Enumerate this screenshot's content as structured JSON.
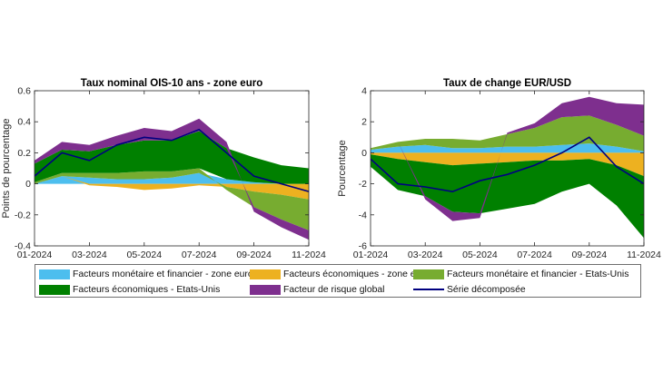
{
  "colors": {
    "monetaire_euro": "#4DBEEE",
    "economiques_euro": "#EDB120",
    "monetaire_us": "#77AC30",
    "economiques_us": "#008000",
    "risque_global": "#7E2F8E",
    "serie": "#000080"
  },
  "legend": {
    "items": [
      {
        "key": "monetaire_euro",
        "label": "Facteurs monétaire et financier - zone euro",
        "kind": "area"
      },
      {
        "key": "economiques_euro",
        "label": "Facteurs économiques - zone euro",
        "kind": "area"
      },
      {
        "key": "monetaire_us",
        "label": "Facteurs monétaire et financier - Etats-Unis",
        "kind": "area"
      },
      {
        "key": "economiques_us",
        "label": "Facteurs économiques - Etats-Unis",
        "kind": "area"
      },
      {
        "key": "risque_global",
        "label": "Facteur de risque global",
        "kind": "area"
      },
      {
        "key": "serie",
        "label": "Série décomposée",
        "kind": "line"
      }
    ]
  },
  "chart_data": [
    {
      "type": "area",
      "stacked": true,
      "title": "Taux nominal OIS-10 ans - zone euro",
      "xlabel": "",
      "ylabel": "Points de pourcentage",
      "ylim": [
        -0.4,
        0.6
      ],
      "yticks": [
        "-0.4",
        "-0.2",
        "0",
        "0.2",
        "0.4",
        "0.6"
      ],
      "xticks": [
        "01-2024",
        "03-2024",
        "05-2024",
        "07-2024",
        "09-2024",
        "11-2024"
      ],
      "x": [
        "01-2024",
        "02-2024",
        "03-2024",
        "04-2024",
        "05-2024",
        "06-2024",
        "07-2024",
        "08-2024",
        "09-2024",
        "10-2024",
        "11-2024"
      ],
      "series": [
        {
          "name": "Facteurs monétaire et financier - zone euro",
          "key": "monetaire_euro",
          "values": [
            0.0,
            0.05,
            0.04,
            0.03,
            0.03,
            0.04,
            0.07,
            0.03,
            0.01,
            0.0,
            0.0
          ]
        },
        {
          "name": "Facteurs économiques - zone euro",
          "key": "economiques_euro",
          "values": [
            0.0,
            0.0,
            -0.01,
            -0.02,
            -0.04,
            -0.03,
            -0.01,
            -0.02,
            -0.05,
            -0.07,
            -0.1
          ]
        },
        {
          "name": "Facteurs monétaire et financier - Etats-Unis",
          "key": "monetaire_us",
          "values": [
            0.01,
            0.02,
            0.03,
            0.04,
            0.05,
            0.04,
            0.03,
            -0.02,
            -0.1,
            -0.16,
            -0.2
          ]
        },
        {
          "name": "Facteurs économiques - Etats-Unis",
          "key": "economiques_us",
          "values": [
            0.12,
            0.15,
            0.14,
            0.18,
            0.2,
            0.2,
            0.24,
            0.2,
            0.16,
            0.12,
            0.1
          ]
        },
        {
          "name": "Facteur de risque global",
          "key": "risque_global",
          "values": [
            0.02,
            0.05,
            0.04,
            0.06,
            0.08,
            0.06,
            0.08,
            0.04,
            -0.03,
            -0.05,
            -0.06
          ]
        }
      ],
      "line": {
        "name": "Série décomposée",
        "key": "serie",
        "values": [
          0.05,
          0.2,
          0.15,
          0.25,
          0.3,
          0.28,
          0.35,
          0.2,
          0.05,
          0.0,
          -0.05
        ]
      }
    },
    {
      "type": "area",
      "stacked": true,
      "title": "Taux de change EUR/USD",
      "xlabel": "",
      "ylabel": "Pourcentage",
      "ylim": [
        -6,
        4
      ],
      "yticks": [
        "-6",
        "-4",
        "-2",
        "0",
        "2",
        "4"
      ],
      "xticks": [
        "01-2024",
        "03-2024",
        "05-2024",
        "07-2024",
        "09-2024",
        "11-2024"
      ],
      "x": [
        "01-2024",
        "02-2024",
        "03-2024",
        "04-2024",
        "05-2024",
        "06-2024",
        "07-2024",
        "08-2024",
        "09-2024",
        "10-2024",
        "11-2024"
      ],
      "series": [
        {
          "name": "Facteurs monétaire et financier - zone euro",
          "key": "monetaire_euro",
          "values": [
            0.2,
            0.4,
            0.5,
            0.3,
            0.3,
            0.4,
            0.4,
            0.5,
            0.6,
            0.4,
            0.1
          ]
        },
        {
          "name": "Facteurs économiques - zone euro",
          "key": "economiques_euro",
          "values": [
            -0.1,
            -0.4,
            -0.6,
            -0.8,
            -0.7,
            -0.6,
            -0.5,
            -0.5,
            -0.4,
            -0.8,
            -1.5
          ]
        },
        {
          "name": "Facteurs monétaire et financier - Etats-Unis",
          "key": "monetaire_us",
          "values": [
            0.1,
            0.3,
            0.4,
            0.6,
            0.5,
            0.8,
            1.2,
            1.8,
            1.8,
            1.4,
            1.0
          ]
        },
        {
          "name": "Facteurs économiques - Etats-Unis",
          "key": "economiques_us",
          "values": [
            -0.8,
            -2.0,
            -2.2,
            -3.0,
            -3.2,
            -3.0,
            -2.8,
            -2.0,
            -1.6,
            -2.6,
            -4.0
          ]
        },
        {
          "name": "Facteur de risque global",
          "key": "risque_global",
          "values": [
            0.0,
            0.0,
            -0.2,
            -0.6,
            -0.3,
            0.1,
            0.3,
            0.9,
            1.2,
            1.4,
            2.0
          ]
        }
      ],
      "line": {
        "name": "Série décomposée",
        "key": "serie",
        "values": [
          -0.4,
          -2.0,
          -2.2,
          -2.5,
          -1.8,
          -1.4,
          -0.8,
          0.0,
          1.0,
          -0.9,
          -2.0
        ]
      }
    }
  ]
}
